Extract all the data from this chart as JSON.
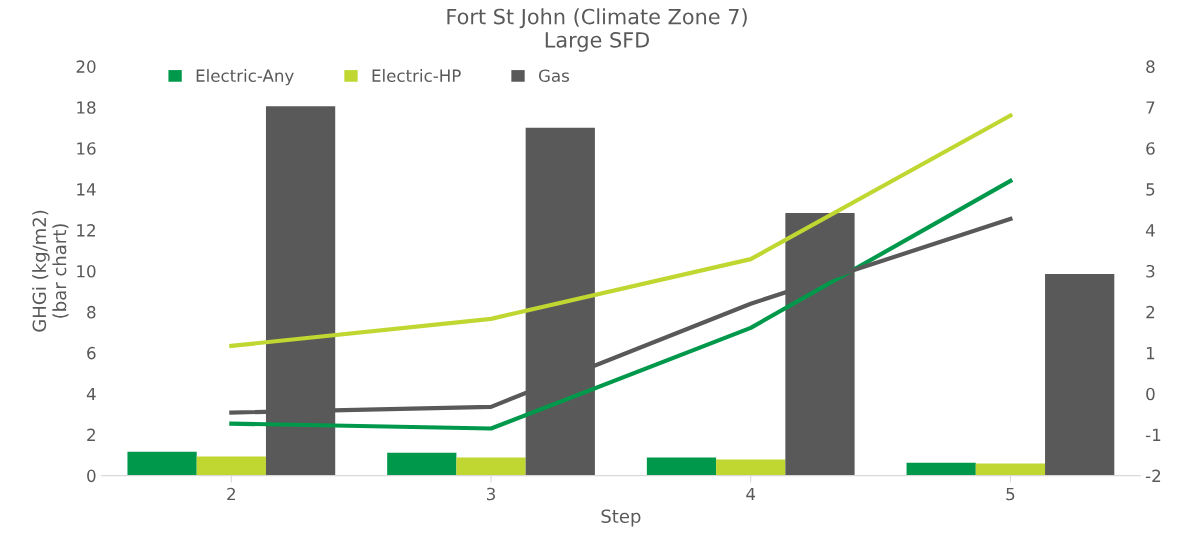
{
  "chart_data": {
    "type": "bar",
    "title": "Fort St John (Climate Zone 7)",
    "subtitle": "Large SFD",
    "xlabel": "Step",
    "ylabel": "GHGi (kg/m2)\n(bar chart)",
    "categories": [
      "2",
      "3",
      "4",
      "5"
    ],
    "series": [
      {
        "name": "Electric-Any",
        "color": "#00994c",
        "values": [
          1.17,
          1.12,
          0.88,
          0.63
        ]
      },
      {
        "name": "Electric-HP",
        "color": "#bfd730",
        "values": [
          0.93,
          0.88,
          0.78,
          0.59
        ]
      },
      {
        "name": "Gas",
        "color": "#595959",
        "values": [
          18.05,
          17.0,
          12.83,
          9.85
        ]
      },
      {
        "type": "line",
        "axis": "y2",
        "color": "#00994c",
        "values": [
          -0.73,
          -0.85,
          1.61,
          5.2
        ]
      },
      {
        "type": "line",
        "axis": "y2",
        "color": "#bfd730",
        "values": [
          1.17,
          1.83,
          3.29,
          6.8
        ]
      },
      {
        "type": "line",
        "axis": "y2",
        "color": "#595959",
        "values": [
          -0.46,
          -0.32,
          2.2,
          4.27
        ]
      }
    ],
    "ylim": [
      0,
      20
    ],
    "yticks": [
      0,
      2,
      4,
      6,
      8,
      10,
      12,
      14,
      16,
      18,
      20
    ],
    "y2lim": [
      -2,
      8
    ],
    "y2ticks": [
      -2,
      -1,
      0,
      1,
      2,
      3,
      4,
      5,
      6,
      7,
      8
    ],
    "legend": "top left",
    "grid": false,
    "line_style": "solid",
    "marker": "none"
  }
}
